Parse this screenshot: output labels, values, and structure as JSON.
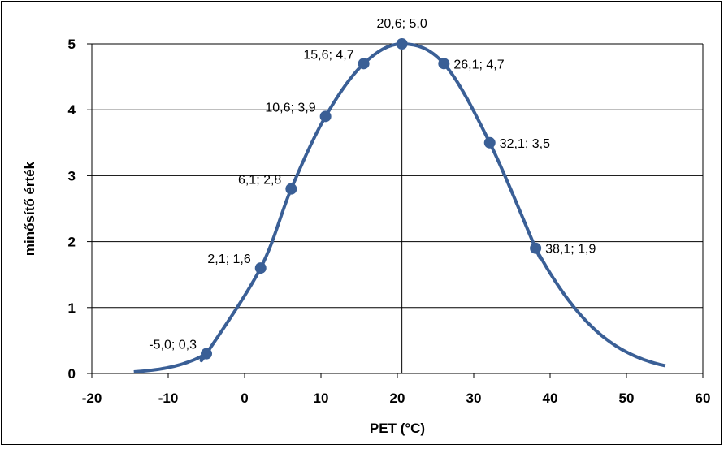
{
  "chart_data": {
    "type": "line",
    "xlabel": "PET (°C)",
    "ylabel": "minősítő érték",
    "xlim": [
      -20,
      60
    ],
    "ylim": [
      0,
      5
    ],
    "x_ticks": [
      "-20",
      "-10",
      "0",
      "10",
      "20",
      "30",
      "40",
      "50",
      "60"
    ],
    "y_ticks": [
      "0",
      "1",
      "2",
      "3",
      "4",
      "5"
    ],
    "grid": "horizontal major gridlines; vertical line at x = 20.6",
    "legend": "none",
    "series_color": "#3a5f96",
    "curve": {
      "x_range": [
        -14.5,
        55.5
      ],
      "description": "smooth bell-shaped curve peaking at 20.6; 5.0"
    },
    "points": [
      {
        "x": -5.0,
        "y": 0.3,
        "label": "-5,0; 0,3"
      },
      {
        "x": 2.1,
        "y": 1.6,
        "label": "2,1; 1,6"
      },
      {
        "x": 6.1,
        "y": 2.8,
        "label": "6,1; 2,8"
      },
      {
        "x": 10.6,
        "y": 3.9,
        "label": "10,6; 3,9"
      },
      {
        "x": 15.6,
        "y": 4.7,
        "label": "15,6; 4,7"
      },
      {
        "x": 20.6,
        "y": 5.0,
        "label": "20,6; 5,0"
      },
      {
        "x": 26.1,
        "y": 4.7,
        "label": "26,1; 4,7"
      },
      {
        "x": 32.1,
        "y": 3.5,
        "label": "32,1; 3,5"
      },
      {
        "x": 38.1,
        "y": 1.9,
        "label": "38,1; 1,9"
      }
    ]
  }
}
